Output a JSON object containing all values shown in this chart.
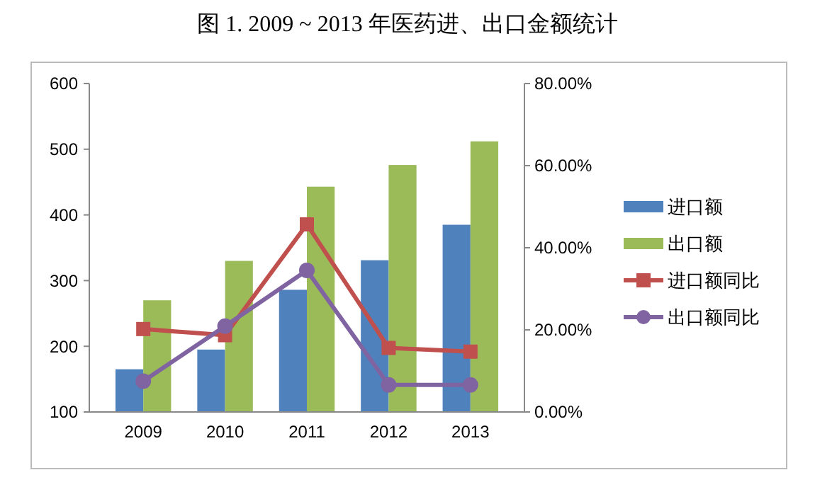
{
  "chart_data": {
    "type": "bar",
    "title": "图 1.   2009 ~ 2013 年医药进、出口金额统计",
    "categories": [
      "2009",
      "2010",
      "2011",
      "2012",
      "2013"
    ],
    "series": [
      {
        "name": "进口额",
        "color": "#4f81bd",
        "values": [
          165,
          195,
          286,
          331,
          385
        ]
      },
      {
        "name": "出口额",
        "color": "#9bbb59",
        "values": [
          270,
          330,
          443,
          476,
          512
        ]
      },
      {
        "name": "进口额同比",
        "type": "line",
        "axis": "y2",
        "marker": "square",
        "color": "#c0504d",
        "values": [
          20.2,
          18.7,
          45.7,
          15.6,
          14.7
        ]
      },
      {
        "name": "出口额同比",
        "type": "line",
        "axis": "y2",
        "marker": "circle",
        "color": "#8064a2",
        "values": [
          7.5,
          20.9,
          34.5,
          6.6,
          6.6
        ]
      }
    ],
    "ylim": [
      100,
      600
    ],
    "yticks": [
      100,
      200,
      300,
      400,
      500,
      600
    ],
    "y2lim": [
      0,
      80
    ],
    "y2ticks": [
      {
        "value": 0,
        "label": "0.00%"
      },
      {
        "value": 20,
        "label": "20.00%"
      },
      {
        "value": 40,
        "label": "40.00%"
      },
      {
        "value": 60,
        "label": "60.00%"
      },
      {
        "value": 80,
        "label": "80.00%"
      }
    ],
    "grid": false,
    "legend": "right"
  }
}
